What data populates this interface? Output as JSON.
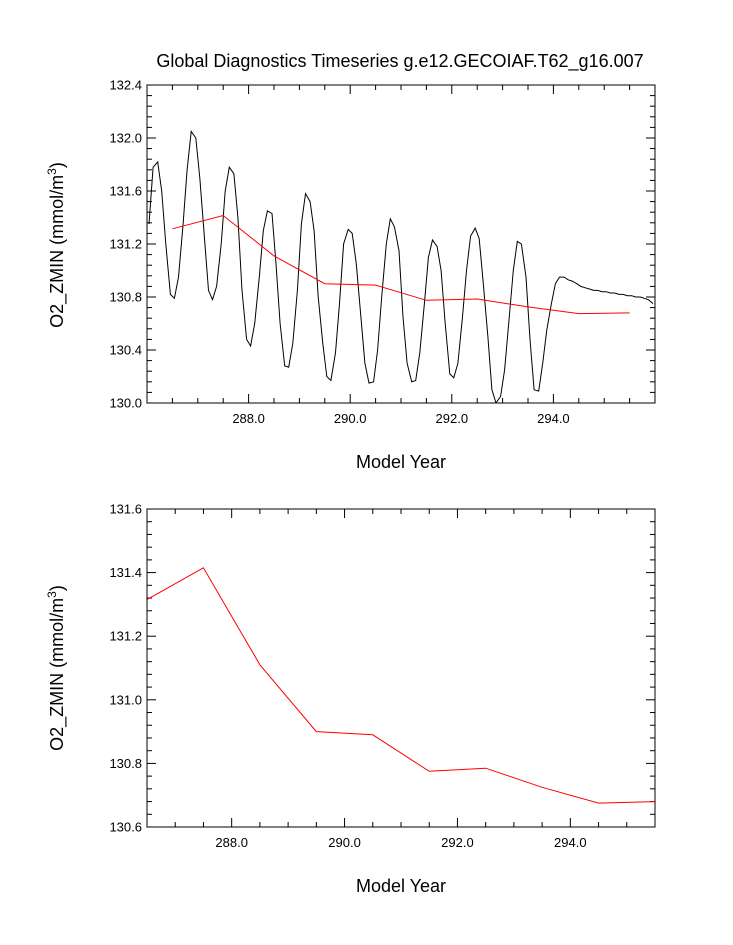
{
  "title": "Global Diagnostics Timeseries g.e12.GECOIAF.T62_g16.007",
  "chart_data": [
    {
      "type": "line",
      "xlabel": "Model Year",
      "ylabel_main": "O2_ZMIN (mmol/m",
      "ylabel_sup": "3",
      "ylabel_close": ")",
      "xlim": [
        286.0,
        296.0
      ],
      "ylim": [
        130.0,
        132.4
      ],
      "x_ticks": [
        "288.0",
        "290.0",
        "292.0",
        "294.0"
      ],
      "x_tick_values": [
        288,
        290,
        292,
        294
      ],
      "y_ticks": [
        "130.0",
        "130.4",
        "130.8",
        "131.2",
        "131.6",
        "132.0",
        "132.4"
      ],
      "y_tick_values": [
        130.0,
        130.4,
        130.8,
        131.2,
        131.6,
        132.0,
        132.4
      ],
      "series": [
        {
          "color": "#000000",
          "x": [
            286.04,
            286.12,
            286.21,
            286.29,
            286.37,
            286.46,
            286.54,
            286.62,
            286.71,
            286.79,
            286.87,
            286.96,
            287.04,
            287.12,
            287.21,
            287.29,
            287.37,
            287.46,
            287.54,
            287.62,
            287.71,
            287.79,
            287.87,
            287.96,
            288.04,
            288.12,
            288.21,
            288.29,
            288.37,
            288.46,
            288.54,
            288.62,
            288.71,
            288.79,
            288.87,
            288.96,
            289.04,
            289.12,
            289.21,
            289.29,
            289.37,
            289.46,
            289.54,
            289.62,
            289.71,
            289.79,
            289.87,
            289.96,
            290.04,
            290.12,
            290.21,
            290.29,
            290.37,
            290.46,
            290.54,
            290.62,
            290.71,
            290.79,
            290.87,
            290.96,
            291.04,
            291.12,
            291.21,
            291.29,
            291.37,
            291.46,
            291.54,
            291.62,
            291.71,
            291.79,
            291.87,
            291.96,
            292.04,
            292.12,
            292.21,
            292.29,
            292.37,
            292.46,
            292.54,
            292.62,
            292.71,
            292.79,
            292.87,
            292.96,
            293.04,
            293.12,
            293.21,
            293.29,
            293.37,
            293.46,
            293.54,
            293.62,
            293.71,
            293.79,
            293.87,
            293.96,
            294.04,
            294.12,
            294.21,
            294.29,
            294.37,
            294.46,
            294.54,
            294.62,
            294.71,
            294.79,
            294.87,
            294.96,
            295.04,
            295.12,
            295.21,
            295.29,
            295.37,
            295.46,
            295.54,
            295.62,
            295.71,
            295.79,
            295.87,
            295.96
          ],
          "values": [
            131.35,
            131.78,
            131.82,
            131.6,
            131.2,
            130.82,
            130.79,
            130.95,
            131.35,
            131.76,
            132.05,
            132.0,
            131.7,
            131.3,
            130.85,
            130.78,
            130.88,
            131.2,
            131.6,
            131.78,
            131.73,
            131.4,
            130.85,
            130.48,
            130.43,
            130.6,
            130.95,
            131.3,
            131.45,
            131.43,
            131.05,
            130.6,
            130.28,
            130.27,
            130.45,
            130.85,
            131.35,
            131.58,
            131.52,
            131.3,
            130.8,
            130.45,
            130.2,
            130.17,
            130.38,
            130.75,
            131.2,
            131.31,
            131.28,
            131.05,
            130.65,
            130.3,
            130.15,
            130.16,
            130.4,
            130.8,
            131.2,
            131.39,
            131.33,
            131.15,
            130.65,
            130.3,
            130.16,
            130.17,
            130.38,
            130.75,
            131.1,
            131.23,
            131.18,
            131.0,
            130.6,
            130.22,
            130.19,
            130.3,
            130.65,
            131.0,
            131.26,
            131.32,
            131.24,
            130.9,
            130.5,
            130.1,
            130.0,
            130.05,
            130.25,
            130.6,
            131.0,
            131.22,
            131.2,
            130.95,
            130.48,
            130.1,
            130.09,
            130.3,
            130.55,
            130.75,
            130.9,
            130.95,
            130.95,
            130.93,
            130.92,
            130.9,
            130.88,
            130.87,
            130.86,
            130.85,
            130.85,
            130.84,
            130.84,
            130.83,
            130.83,
            130.82,
            130.82,
            130.81,
            130.81,
            130.8,
            130.8,
            130.79,
            130.78,
            130.75
          ]
        },
        {
          "color": "#ff0000",
          "x": [
            286.5,
            287.5,
            288.5,
            289.5,
            290.5,
            291.5,
            292.5,
            293.5,
            294.5,
            295.5
          ],
          "values": [
            131.315,
            131.415,
            131.11,
            130.9,
            130.89,
            130.775,
            130.785,
            130.725,
            130.675,
            130.68
          ]
        }
      ]
    },
    {
      "type": "line",
      "xlabel": "Model Year",
      "ylabel_main": "O2_ZMIN (mmol/m",
      "ylabel_sup": "3",
      "ylabel_close": ")",
      "xlim": [
        286.5,
        295.5
      ],
      "ylim": [
        130.6,
        131.6
      ],
      "x_ticks": [
        "288.0",
        "290.0",
        "292.0",
        "294.0"
      ],
      "x_tick_values": [
        288,
        290,
        292,
        294
      ],
      "y_ticks": [
        "130.6",
        "130.8",
        "131.0",
        "131.2",
        "131.4",
        "131.6"
      ],
      "y_tick_values": [
        130.6,
        130.8,
        131.0,
        131.2,
        131.4,
        131.6
      ],
      "series": [
        {
          "color": "#ff0000",
          "x": [
            286.5,
            287.5,
            288.5,
            289.5,
            290.5,
            291.5,
            292.5,
            293.5,
            294.5,
            295.5
          ],
          "values": [
            131.315,
            131.415,
            131.11,
            130.9,
            130.89,
            130.775,
            130.785,
            130.725,
            130.675,
            130.68
          ]
        }
      ]
    }
  ]
}
